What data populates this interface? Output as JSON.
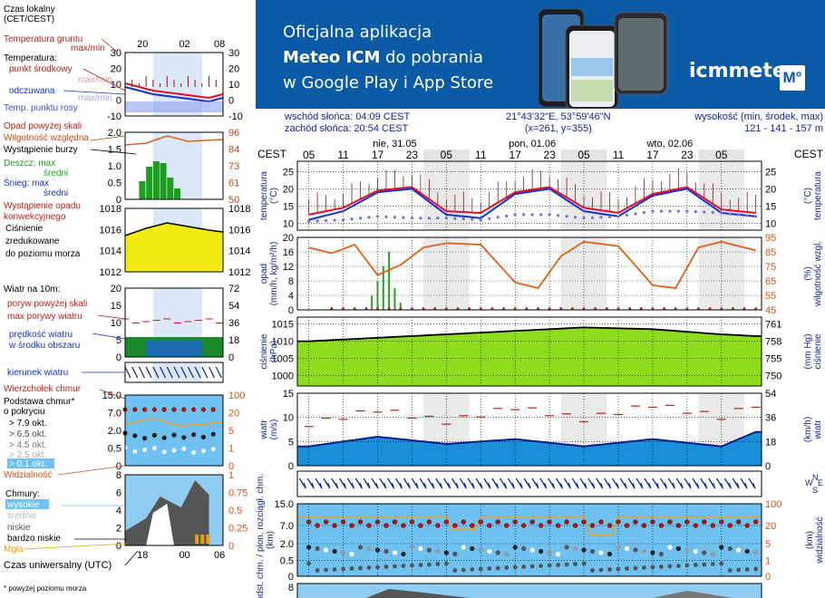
{
  "banner": {
    "line1": "Oficjalna aplikacja",
    "line2_bold": "Meteo ICM",
    "line2_rest": " do pobrania",
    "line3": "w Google Play i App Store",
    "logo": "icmmeteo",
    "logo_badge": "M°",
    "colors": {
      "background": "#0b5aa6"
    }
  },
  "info": {
    "sunrise": "wschód słońca: 04:09 CEST",
    "sunset": "zachód słońca: 20:54 CEST",
    "coords": "21°43'32\"E, 53°59'46\"N",
    "grid": "(x=261,  y=355)",
    "height_label": "wysokość (min, środek, max)",
    "height_values": "121 - 141 - 157 m"
  },
  "legend": {
    "time_label": "Czas lokalny\n(CET/CEST)",
    "time_ticks": [
      "20",
      "02",
      "08"
    ],
    "utc_label": "Czas uniwersalny (UTC)",
    "utc_ticks": [
      "18",
      "00",
      "06"
    ],
    "footnote": "* powyżej poziomu morza",
    "temp": {
      "ground": "Temperatura gruntu",
      "ground_sub": "max/min",
      "title": "Temperatura:",
      "mid": "punkt środkowy",
      "maxmin": "max/min",
      "feels": "odczuwana",
      "feels_sub": "max/min",
      "dew": "Temp. punktu rosy",
      "ticks": [
        "30",
        "20",
        "10",
        "0",
        "-10"
      ]
    },
    "precip": {
      "above": "Opad powyżej skali",
      "humidity": "Wilgotność względna",
      "storm": "Wystąpienie burzy",
      "rain_max": "Deszcz: max",
      "rain_mid": "średni",
      "snow_max": "Śnieg:   max",
      "snow_mid": "średni",
      "conv": "Wystąpienie opadu\nkonwekcyjnego",
      "ticks_left": [
        "2.0",
        "1.5",
        "1.0",
        "0.5",
        "0"
      ],
      "ticks_right": [
        "96",
        "84",
        "73",
        "61",
        "50"
      ]
    },
    "pressure": {
      "label": "Ciśnienie\nzredukowane\ndo poziomu morza",
      "ticks": [
        "1018",
        "1016",
        "1014",
        "1012"
      ]
    },
    "wind": {
      "label": "Wiatr na 10m:",
      "gust_above": "poryw powyżej skali",
      "gust_max": "max porywy wiatru",
      "speed": "prędkość wiatru\nw środku obszaru",
      "ticks_left": [
        "20",
        "15",
        "10",
        "5",
        "0"
      ],
      "ticks_right": [
        "72",
        "54",
        "36",
        "18",
        "0"
      ]
    },
    "direction": {
      "label": "kierunek wiatru"
    },
    "clouds": {
      "top": "Wierzchołek chmur",
      "base": "Podstawa chmur*\no pokryciu",
      "o79": "> 7.9 okt.",
      "o65": "> 6.5 okt.",
      "o45": "> 4.5 okt.",
      "o25": "> 2.5 okt.",
      "o01": "> 0.1 okt.",
      "visibility": "Widzialność",
      "ticks_left": [
        "15.0",
        "7.0",
        "2.0",
        "0.5",
        "0"
      ],
      "ticks_right": [
        "100",
        "20",
        "5",
        "1",
        "0"
      ]
    },
    "cloud_cover": {
      "title": "Chmury:",
      "high": "wysokie",
      "mid": "średnie",
      "low": "niskie",
      "very_low": "bardzo niskie",
      "fog": "Mgła",
      "ticks_left": [
        "8",
        "6",
        "4",
        "2",
        "0"
      ],
      "ticks_right": [
        "1",
        "0.75",
        "0.5",
        "0.25",
        "0"
      ]
    }
  },
  "main": {
    "cest": "CEST",
    "days": [
      "nie, 31.05",
      "pon, 01.06",
      "wto, 02.06"
    ],
    "hour_ticks": [
      "05",
      "11",
      "17",
      "23",
      "05",
      "11",
      "17",
      "23",
      "05",
      "11",
      "17",
      "23",
      "05"
    ],
    "panels": {
      "temp": {
        "left": "temperatura\n(°C)",
        "right": "(°C)\ntemperatura"
      },
      "precip": {
        "left": "opad\n(mm/h, kg/m²/h)",
        "right": "(%)\nwilgotność wzgl."
      },
      "pressure": {
        "left": "ciśnienie\n(hPa)",
        "right": "(mm Hg)\nciśnienie"
      },
      "wind": {
        "left": "wiatr\n(m/s)",
        "right": "(km/h)\nwiatr"
      },
      "clouds": {
        "left": "podst. chm. / pion. rozciągł. chm.\n(km)",
        "right": "(km)\nwidzialność"
      }
    },
    "compass": [
      "W",
      "N",
      "S",
      "E"
    ]
  },
  "chart_data": [
    {
      "type": "line",
      "title": "temperatura",
      "xlabel": "",
      "ylabel": "(°C)",
      "ylim": [
        8,
        28
      ],
      "yticks_left": [
        10,
        15,
        20,
        25
      ],
      "yticks_right": [
        10,
        15,
        20,
        25
      ],
      "x_hours": [
        0,
        6,
        12,
        18,
        24,
        30,
        36,
        42,
        48,
        54,
        60,
        66,
        72,
        78
      ],
      "series": [
        {
          "name": "punkt środkowy",
          "values": [
            12.5,
            14.5,
            19.5,
            20.5,
            13.5,
            13.0,
            19.0,
            20.5,
            14.5,
            13.0,
            18.5,
            20.5,
            14.0,
            13.0
          ]
        },
        {
          "name": "odczuwana",
          "values": [
            11.0,
            13.5,
            19.0,
            20.0,
            12.5,
            11.5,
            18.5,
            20.0,
            13.5,
            12.0,
            18.0,
            20.0,
            13.0,
            12.0
          ]
        },
        {
          "name": "Temp. punktu rosy",
          "values": [
            10.5,
            11.0,
            12.0,
            11.5,
            11.5,
            11.0,
            12.5,
            12.5,
            11.5,
            12.0,
            13.5,
            13.5,
            13.0,
            12.0
          ]
        }
      ]
    },
    {
      "type": "bar",
      "title": "opad",
      "ylabel": "(mm/h, kg/m²/h)",
      "ylim": [
        0,
        20
      ],
      "yticks_left": [
        0,
        4,
        8,
        12,
        16,
        20
      ],
      "yticks_right": [
        45,
        55,
        65,
        75,
        85,
        95
      ],
      "humidity_x_hours": [
        0,
        4,
        8,
        12,
        16,
        20,
        24,
        30,
        36,
        40,
        44,
        48,
        54,
        60,
        64,
        68,
        72,
        78
      ],
      "humidity": [
        88,
        84,
        90,
        69,
        76,
        88,
        91,
        90,
        64,
        60,
        82,
        92,
        89,
        62,
        60,
        88,
        92,
        86
      ],
      "precip_x_hours": [
        11,
        12,
        13,
        14,
        15,
        16
      ],
      "precip": [
        4,
        8,
        12,
        16,
        6,
        2
      ]
    },
    {
      "type": "area",
      "title": "ciśnienie",
      "ylabel": "(hPa)",
      "ylim": [
        997,
        1017
      ],
      "yticks_left": [
        1000,
        1005,
        1010,
        1015
      ],
      "yticks_right": [
        750,
        755,
        758,
        761
      ],
      "x_hours": [
        0,
        12,
        24,
        36,
        48,
        60,
        72,
        78
      ],
      "values": [
        1010.0,
        1011.0,
        1012.0,
        1013.0,
        1014.0,
        1013.5,
        1012.0,
        1011.5
      ]
    },
    {
      "type": "line",
      "title": "wiatr",
      "ylabel": "(m/s)",
      "ylim": [
        0,
        15
      ],
      "yticks_left": [
        0,
        5,
        10,
        15
      ],
      "yticks_right": [
        0,
        18,
        36,
        54
      ],
      "x_hours": [
        0,
        12,
        24,
        36,
        48,
        60,
        72,
        78
      ],
      "series": [
        {
          "name": "prędkość wiatru",
          "values": [
            4.0,
            6.0,
            4.5,
            5.5,
            4.0,
            5.5,
            4.0,
            7.0
          ]
        },
        {
          "name": "max porywy wiatru",
          "values": [
            8.5,
            11.5,
            9.0,
            12.0,
            9.5,
            12.5,
            10.0,
            12.5
          ]
        }
      ]
    },
    {
      "type": "scatter",
      "title": "chmury",
      "ylabel": "(km)",
      "ylim": [
        0,
        15
      ],
      "yticks_left": [
        "0",
        "0.5",
        "2.0",
        "7.0",
        "15.0"
      ],
      "yticks_right": [
        "0",
        "1",
        "5",
        "20",
        "100"
      ]
    }
  ]
}
